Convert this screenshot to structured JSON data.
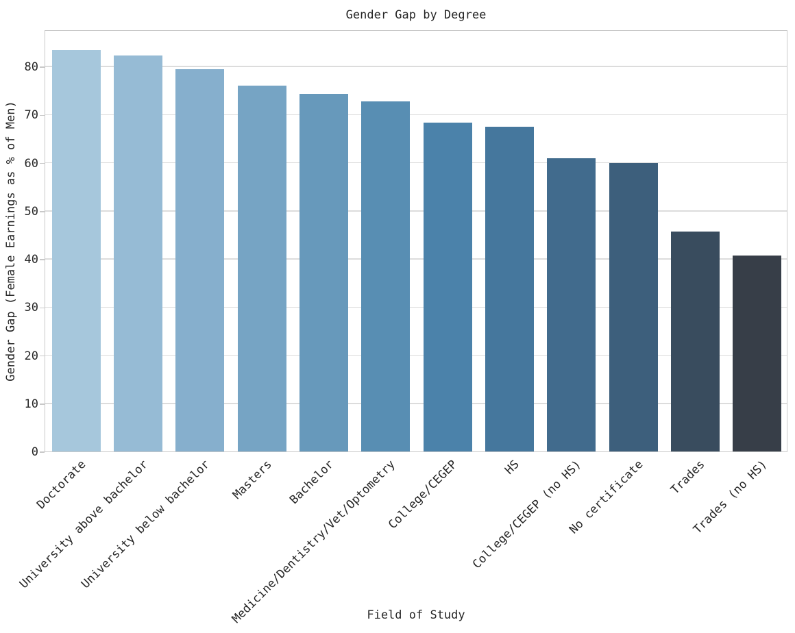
{
  "chart_data": {
    "type": "bar",
    "title": "Gender Gap by Degree",
    "xlabel": "Field of Study",
    "ylabel": "Gender Gap (Female Earnings as % of Men)",
    "categories": [
      "Doctorate",
      "University above bachelor",
      "University below bachelor",
      "Masters",
      "Bachelor",
      "Medicine/Dentistry/Vet/Optometry",
      "College/CEGEP",
      "HS",
      "College/CEGEP (no HS)",
      "No certificate",
      "Trades",
      "Trades (no HS)"
    ],
    "values": [
      83.4,
      82.3,
      79.4,
      76.0,
      74.3,
      72.7,
      68.3,
      67.5,
      61.0,
      60.0,
      45.7,
      40.7
    ],
    "bar_colors": [
      "#a6c7dc",
      "#96bbd5",
      "#86afcd",
      "#76a4c4",
      "#6799bb",
      "#588eb3",
      "#4b82aa",
      "#45779d",
      "#416b8d",
      "#3d5f7c",
      "#394c5e",
      "#373e48"
    ],
    "ylim": [
      0,
      87.7
    ],
    "yticks": [
      0,
      10,
      20,
      30,
      40,
      50,
      60,
      70,
      80
    ],
    "grid": true,
    "legend": "none"
  },
  "colors": {
    "background": "#ffffff",
    "text": "#262626",
    "grid": "#dcdcdc",
    "spine": "#c8c8c8"
  }
}
